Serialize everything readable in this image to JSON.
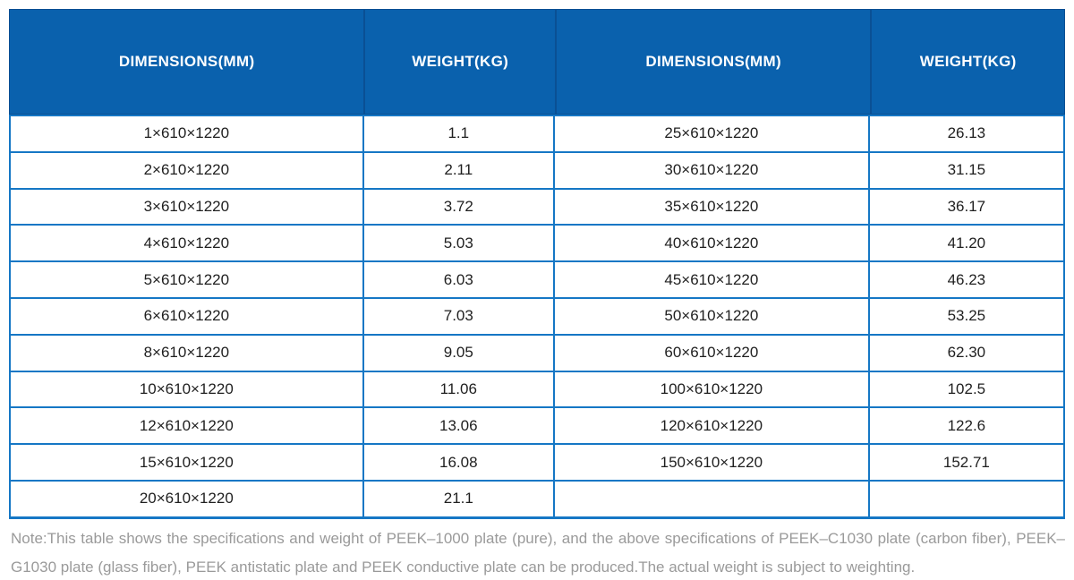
{
  "colors": {
    "header_bg": "#0a61ad",
    "header_divider": "#0a5094",
    "header_text": "#ffffff",
    "body_border": "#1577c5",
    "cell_text": "#1f1f1f",
    "note_text": "#9a9a9a"
  },
  "table": {
    "headers": [
      "DIMENSIONS(MM)",
      "WEIGHT(KG)",
      "DIMENSIONS(MM)",
      "WEIGHT(KG)"
    ],
    "rows": [
      [
        "1×610×1220",
        "1.1",
        "25×610×1220",
        "26.13"
      ],
      [
        "2×610×1220",
        "2.11",
        "30×610×1220",
        "31.15"
      ],
      [
        "3×610×1220",
        "3.72",
        "35×610×1220",
        "36.17"
      ],
      [
        "4×610×1220",
        "5.03",
        "40×610×1220",
        "41.20"
      ],
      [
        "5×610×1220",
        "6.03",
        "45×610×1220",
        "46.23"
      ],
      [
        "6×610×1220",
        "7.03",
        "50×610×1220",
        "53.25"
      ],
      [
        "8×610×1220",
        "9.05",
        "60×610×1220",
        "62.30"
      ],
      [
        "10×610×1220",
        "11.06",
        "100×610×1220",
        "102.5"
      ],
      [
        "12×610×1220",
        "13.06",
        "120×610×1220",
        "122.6"
      ],
      [
        "15×610×1220",
        "16.08",
        "150×610×1220",
        "152.71"
      ],
      [
        "20×610×1220",
        "21.1",
        "",
        ""
      ]
    ]
  },
  "note": "Note:This table shows the specifications and weight of PEEK–1000 plate (pure), and the above specifications of PEEK–C1030 plate (carbon fiber), PEEK–G1030 plate (glass fiber), PEEK antistatic plate and PEEK conductive plate can be produced.The actual weight is subject to weighting."
}
